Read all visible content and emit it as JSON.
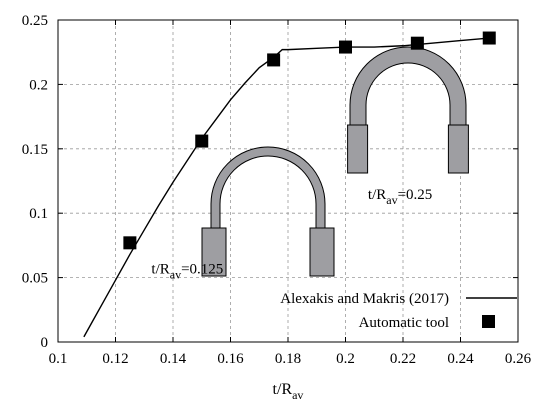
{
  "chart_data": {
    "type": "scatter",
    "title": "",
    "xlabel": "t/R",
    "xlabel_sub": "av",
    "ylabel": "",
    "xlim": [
      0.1,
      0.26
    ],
    "ylim": [
      0,
      0.25
    ],
    "x_ticks": [
      0.1,
      0.12,
      0.14,
      0.16,
      0.18,
      0.2,
      0.22,
      0.24,
      0.26
    ],
    "x_tick_labels": [
      "0.1",
      "0.12",
      "0.14",
      "0.16",
      "0.18",
      "0.2",
      "0.22",
      "0.24",
      "0.26"
    ],
    "y_ticks": [
      0,
      0.05,
      0.1,
      0.15,
      0.2,
      0.25
    ],
    "y_tick_labels": [
      "0",
      "0.05",
      "0.1",
      "0.15",
      "0.2",
      "0.25"
    ],
    "grid": true,
    "legend_position": "bottom-right",
    "series": [
      {
        "name": "Alexakis and Makris (2017)",
        "kind": "line",
        "color": "#000000",
        "x": [
          0.109,
          0.112,
          0.115,
          0.12,
          0.125,
          0.13,
          0.135,
          0.14,
          0.145,
          0.15,
          0.155,
          0.16,
          0.165,
          0.17,
          0.175,
          0.178,
          0.18,
          0.19,
          0.2,
          0.21,
          0.22,
          0.23,
          0.24,
          0.25
        ],
        "y": [
          0.004,
          0.016,
          0.028,
          0.048,
          0.068,
          0.087,
          0.106,
          0.124,
          0.141,
          0.158,
          0.173,
          0.188,
          0.201,
          0.213,
          0.221,
          0.227,
          0.227,
          0.228,
          0.229,
          0.229,
          0.23,
          0.232,
          0.234,
          0.236
        ]
      },
      {
        "name": "Automatic tool",
        "kind": "marker",
        "marker": "square",
        "color": "#000000",
        "x": [
          0.125,
          0.15,
          0.175,
          0.2,
          0.225,
          0.25
        ],
        "y": [
          0.077,
          0.156,
          0.219,
          0.229,
          0.232,
          0.236
        ]
      }
    ],
    "annotations": [
      {
        "text": "t/R",
        "sub": "av",
        "suffix": "=0.125",
        "x": 0.145,
        "y": 0.053
      },
      {
        "text": "t/R",
        "sub": "av",
        "suffix": "=0.25",
        "x": 0.219,
        "y": 0.111
      }
    ],
    "fill_color": "#9e9ea2"
  }
}
